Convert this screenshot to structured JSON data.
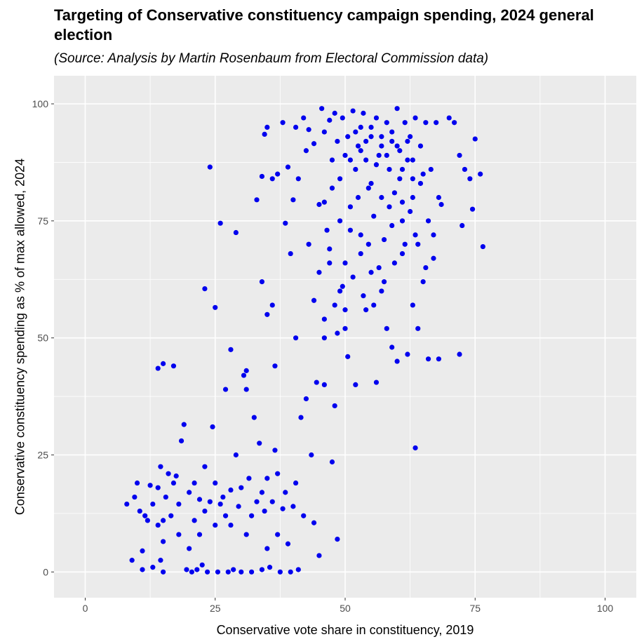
{
  "chart_data": {
    "type": "scatter",
    "title": "Targeting of Conservative constituency campaign spending, 2024 general election",
    "subtitle": "(Source: Analysis by Martin Rosenbaum from Electoral Commission data)",
    "xlabel": "Conservative vote share in constituency, 2019",
    "ylabel": "Conservative constituency spending as % of max allowed, 2024",
    "xlim": [
      -6,
      106
    ],
    "ylim": [
      -5.5,
      106
    ],
    "x_ticks": [
      "0",
      "25",
      "50",
      "75",
      "100"
    ],
    "y_ticks": [
      "0",
      "25",
      "50",
      "75",
      "100"
    ],
    "grid": true,
    "point_color": "#0000ee",
    "panel_background": "#ebebeb",
    "points": [
      [
        8,
        14.5
      ],
      [
        9,
        2.5
      ],
      [
        9.5,
        16
      ],
      [
        10,
        19
      ],
      [
        10.5,
        13
      ],
      [
        11,
        4.5
      ],
      [
        11,
        0.5
      ],
      [
        11.5,
        12
      ],
      [
        12,
        11
      ],
      [
        12.5,
        18.5
      ],
      [
        13,
        14.5
      ],
      [
        13,
        1
      ],
      [
        14,
        18
      ],
      [
        14,
        10
      ],
      [
        14.5,
        22.5
      ],
      [
        14.5,
        2.5
      ],
      [
        15,
        11
      ],
      [
        15,
        0
      ],
      [
        15,
        6.5
      ],
      [
        15.5,
        16
      ],
      [
        16,
        21
      ],
      [
        16.5,
        12
      ],
      [
        17,
        19
      ],
      [
        17.5,
        20.5
      ],
      [
        18,
        14.5
      ],
      [
        18,
        8
      ],
      [
        18.5,
        28
      ],
      [
        19,
        31.5
      ],
      [
        19.5,
        0.5
      ],
      [
        20,
        17
      ],
      [
        20,
        5
      ],
      [
        20.5,
        0
      ],
      [
        21,
        11
      ],
      [
        21,
        19
      ],
      [
        21.5,
        0.5
      ],
      [
        22,
        15.5
      ],
      [
        22,
        8
      ],
      [
        22.5,
        1.5
      ],
      [
        23,
        22.5
      ],
      [
        23,
        13
      ],
      [
        23.5,
        0
      ],
      [
        24,
        15
      ],
      [
        24.5,
        31
      ],
      [
        25,
        19
      ],
      [
        25,
        10
      ],
      [
        25.5,
        0
      ],
      [
        26,
        14.5
      ],
      [
        26.5,
        16
      ],
      [
        27,
        12
      ],
      [
        27.5,
        0
      ],
      [
        28,
        17.5
      ],
      [
        28,
        10
      ],
      [
        28.5,
        0.5
      ],
      [
        29,
        25
      ],
      [
        29.5,
        14
      ],
      [
        30,
        18
      ],
      [
        30,
        0
      ],
      [
        30.5,
        42
      ],
      [
        31,
        39
      ],
      [
        31,
        8
      ],
      [
        31.5,
        20
      ],
      [
        32,
        0
      ],
      [
        32,
        12
      ],
      [
        32.5,
        33
      ],
      [
        33,
        15
      ],
      [
        33.5,
        27.5
      ],
      [
        34,
        17
      ],
      [
        34,
        0.5
      ],
      [
        34.5,
        13
      ],
      [
        35,
        20
      ],
      [
        35,
        5
      ],
      [
        35.5,
        1
      ],
      [
        36,
        15
      ],
      [
        36.5,
        26
      ],
      [
        37,
        8
      ],
      [
        37,
        21
      ],
      [
        37.5,
        0
      ],
      [
        38,
        13.5
      ],
      [
        38.5,
        17
      ],
      [
        39,
        6
      ],
      [
        39.5,
        0
      ],
      [
        40,
        14
      ],
      [
        40.5,
        19
      ],
      [
        41,
        0.5
      ],
      [
        42,
        12
      ],
      [
        44,
        10.5
      ],
      [
        45,
        3.5
      ],
      [
        46,
        40
      ],
      [
        47.5,
        23.5
      ],
      [
        48.5,
        7
      ],
      [
        14,
        43.5
      ],
      [
        15,
        44.5
      ],
      [
        17,
        44
      ],
      [
        23,
        60.5
      ],
      [
        24,
        86.5
      ],
      [
        25,
        56.5
      ],
      [
        26,
        74.5
      ],
      [
        27,
        39
      ],
      [
        28,
        47.5
      ],
      [
        29,
        72.5
      ],
      [
        31,
        43
      ],
      [
        33,
        79.5
      ],
      [
        34,
        62
      ],
      [
        35,
        55
      ],
      [
        36,
        57
      ],
      [
        36.5,
        44
      ],
      [
        38.5,
        74.5
      ],
      [
        39.5,
        68
      ],
      [
        40.5,
        50
      ],
      [
        41.5,
        33
      ],
      [
        42.5,
        37
      ],
      [
        43,
        70
      ],
      [
        43.5,
        25
      ],
      [
        44.5,
        40.5
      ],
      [
        46,
        50
      ],
      [
        46,
        79
      ],
      [
        47,
        69
      ],
      [
        47.5,
        88
      ],
      [
        48,
        35.5
      ],
      [
        48.5,
        51
      ],
      [
        49,
        75
      ],
      [
        49.5,
        61
      ],
      [
        50,
        56
      ],
      [
        50.5,
        46
      ],
      [
        51,
        73
      ],
      [
        52,
        40
      ],
      [
        53,
        68
      ],
      [
        54,
        56
      ],
      [
        55,
        64
      ],
      [
        56,
        40.5
      ],
      [
        57,
        60
      ],
      [
        58,
        52
      ],
      [
        59,
        48
      ],
      [
        60,
        45
      ],
      [
        61,
        68
      ],
      [
        62,
        46.5
      ],
      [
        63,
        57
      ],
      [
        63.5,
        26.5
      ],
      [
        64,
        52
      ],
      [
        65,
        62
      ],
      [
        66,
        45.5
      ],
      [
        67,
        67
      ],
      [
        68,
        45.5
      ],
      [
        72,
        46.5
      ],
      [
        34,
        84.5
      ],
      [
        34.5,
        93.5
      ],
      [
        35,
        95
      ],
      [
        36,
        84
      ],
      [
        37,
        85
      ],
      [
        38,
        96
      ],
      [
        39,
        86.5
      ],
      [
        40,
        79.5
      ],
      [
        40.5,
        95
      ],
      [
        41,
        84
      ],
      [
        42,
        97
      ],
      [
        42.5,
        90
      ],
      [
        43,
        94.5
      ],
      [
        44,
        91.5
      ],
      [
        45,
        78.5
      ],
      [
        45.5,
        99
      ],
      [
        46,
        94
      ],
      [
        46.5,
        73
      ],
      [
        47,
        96.5
      ],
      [
        47.5,
        82
      ],
      [
        48,
        98
      ],
      [
        48.5,
        92
      ],
      [
        49,
        84
      ],
      [
        49.5,
        97
      ],
      [
        50,
        89
      ],
      [
        50.5,
        93
      ],
      [
        51,
        78
      ],
      [
        51.5,
        98.5
      ],
      [
        52,
        86
      ],
      [
        52.5,
        91
      ],
      [
        53,
        95
      ],
      [
        53.5,
        98
      ],
      [
        54,
        88
      ],
      [
        54.5,
        82
      ],
      [
        55,
        93
      ],
      [
        55.5,
        76
      ],
      [
        56,
        97
      ],
      [
        56.5,
        89
      ],
      [
        57,
        91
      ],
      [
        57.5,
        71
      ],
      [
        58,
        96
      ],
      [
        58.5,
        86
      ],
      [
        59,
        92
      ],
      [
        59.5,
        81
      ],
      [
        60,
        99
      ],
      [
        60.5,
        90
      ],
      [
        61,
        75
      ],
      [
        61.5,
        96
      ],
      [
        62,
        88
      ],
      [
        62.5,
        93
      ],
      [
        63,
        80
      ],
      [
        63.5,
        97
      ],
      [
        64,
        70
      ],
      [
        64.5,
        91
      ],
      [
        65,
        85
      ],
      [
        65.5,
        96
      ],
      [
        66,
        75
      ],
      [
        66.5,
        86
      ],
      [
        67,
        72
      ],
      [
        67.5,
        96
      ],
      [
        68,
        80
      ],
      [
        68.5,
        78.5
      ],
      [
        70,
        97
      ],
      [
        71,
        96
      ],
      [
        72,
        89
      ],
      [
        72.5,
        74
      ],
      [
        73,
        86
      ],
      [
        74,
        84
      ],
      [
        74.5,
        77.5
      ],
      [
        75,
        92.5
      ],
      [
        76,
        85
      ],
      [
        76.5,
        69.5
      ],
      [
        51,
        88
      ],
      [
        52,
        94
      ],
      [
        53,
        90
      ],
      [
        54,
        92
      ],
      [
        55,
        95
      ],
      [
        56,
        87
      ],
      [
        57,
        93
      ],
      [
        58,
        89
      ],
      [
        59,
        94
      ],
      [
        60,
        91
      ],
      [
        61,
        86
      ],
      [
        62,
        92
      ],
      [
        63,
        88
      ],
      [
        52.5,
        80
      ],
      [
        54.5,
        70
      ],
      [
        56.5,
        65
      ],
      [
        58.5,
        78
      ],
      [
        60.5,
        84
      ],
      [
        62.5,
        77
      ],
      [
        64.5,
        83
      ],
      [
        50,
        66
      ],
      [
        51.5,
        63
      ],
      [
        53.5,
        59
      ],
      [
        55.5,
        57
      ],
      [
        57.5,
        62
      ],
      [
        59.5,
        66
      ],
      [
        61.5,
        70
      ],
      [
        63.5,
        72
      ],
      [
        65.5,
        65
      ],
      [
        49,
        60
      ],
      [
        47,
        66
      ],
      [
        45,
        64
      ],
      [
        44,
        58
      ],
      [
        46,
        54
      ],
      [
        48,
        57
      ],
      [
        50,
        52
      ],
      [
        53,
        72
      ],
      [
        55,
        83
      ],
      [
        57,
        80
      ],
      [
        59,
        74
      ],
      [
        61,
        79
      ],
      [
        63,
        84
      ]
    ]
  }
}
